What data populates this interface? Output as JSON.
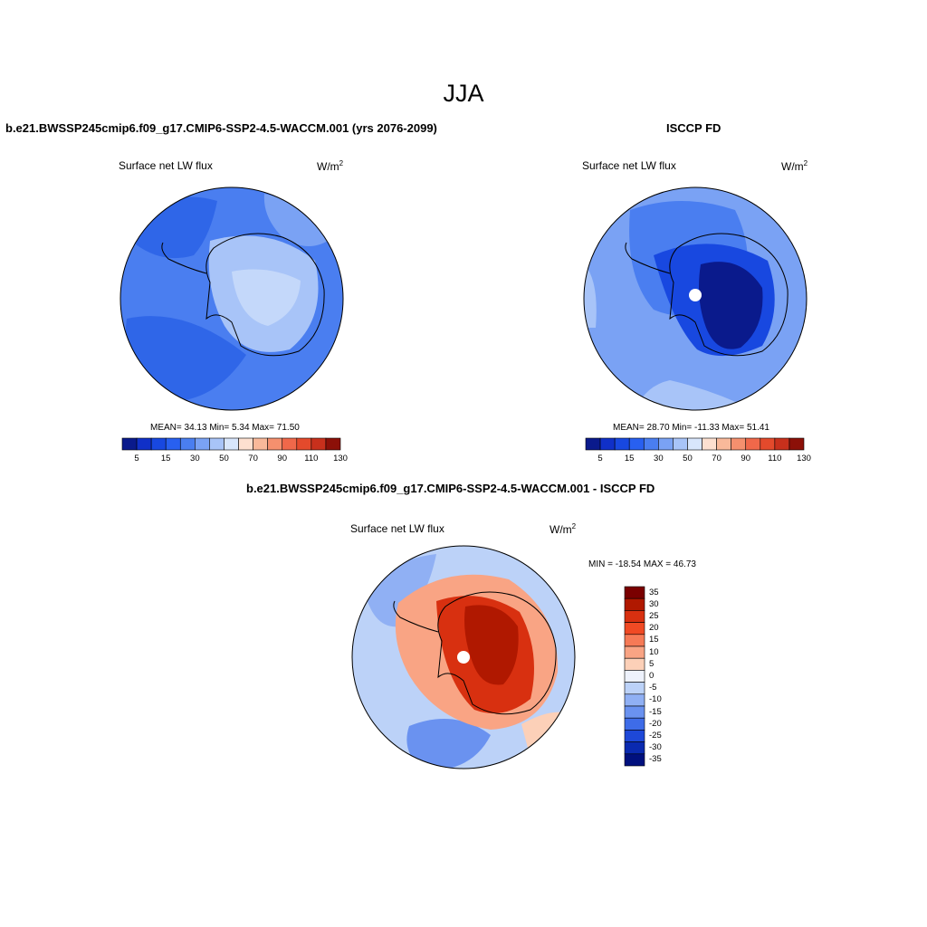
{
  "figure": {
    "season_title": "JJA",
    "panels": [
      {
        "id": "model",
        "title": "b.e21.BWSSP245cmip6.f09_g17.CMIP6-SSP2-4.5-WACCM.001 (yrs 2076-2099)",
        "variable": "Surface net LW flux",
        "units": "W/m",
        "units_exponent": "2",
        "stats_text": "MEAN=  34.13  Min=   5.34  Max=  71.50",
        "colorbar_tick_labels": [
          "5",
          "15",
          "30",
          "50",
          "70",
          "90",
          "110",
          "130"
        ]
      },
      {
        "id": "obs",
        "title": "ISCCP FD",
        "variable": "Surface net LW flux",
        "units": "W/m",
        "units_exponent": "2",
        "stats_text": "MEAN=  28.70  Min= -11.33  Max=  51.41",
        "colorbar_tick_labels": [
          "5",
          "15",
          "30",
          "50",
          "70",
          "90",
          "110",
          "130"
        ]
      },
      {
        "id": "diff",
        "title": "b.e21.BWSSP245cmip6.f09_g17.CMIP6-SSP2-4.5-WACCM.001 - ISCCP FD",
        "variable": "Surface net LW flux",
        "units": "W/m",
        "units_exponent": "2",
        "stats_text": "MIN = -18.54 MAX =  46.73",
        "colorbar_tick_labels": [
          "35",
          "30",
          "25",
          "20",
          "15",
          "10",
          "5",
          "0",
          "-5",
          "-10",
          "-15",
          "-20",
          "-25",
          "-30",
          "-35"
        ]
      }
    ],
    "colors": {
      "abs_scale": [
        "#0a1a8c",
        "#1030c8",
        "#1848e0",
        "#2860f0",
        "#4a7ef0",
        "#7aa2f4",
        "#a8c4f8",
        "#d8e6fc",
        "#fde0d0",
        "#f9b99a",
        "#f5906e",
        "#f0684a",
        "#e44a2c",
        "#c8301c",
        "#8c1008"
      ],
      "diff_scale": [
        "#7a0000",
        "#b01800",
        "#d83010",
        "#f04a24",
        "#f67a56",
        "#f9a484",
        "#fcd0b8",
        "#eef2fc",
        "#bcd2f8",
        "#90b0f4",
        "#6a92f0",
        "#3e6ce8",
        "#1e48d8",
        "#0a2ab0",
        "#00107e"
      ]
    }
  }
}
